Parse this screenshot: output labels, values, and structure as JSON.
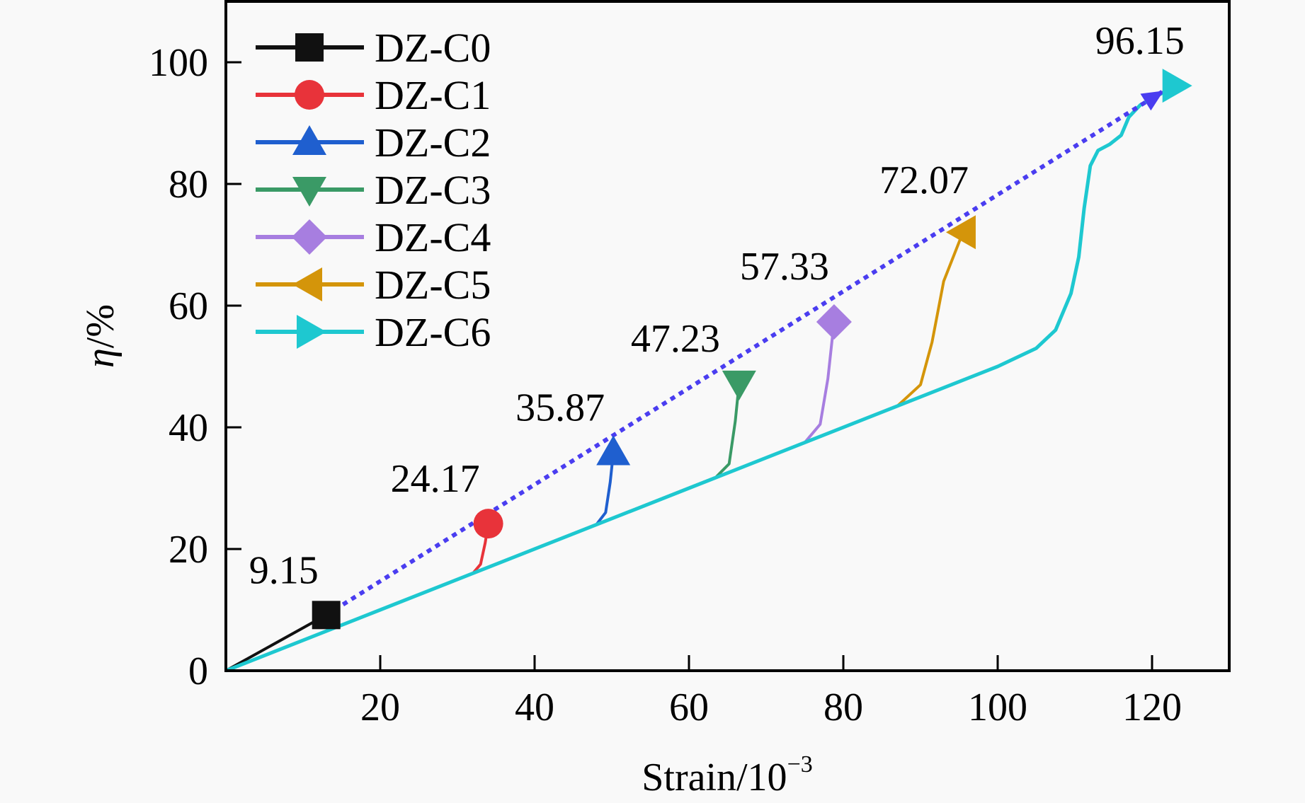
{
  "chart_data": {
    "type": "line",
    "xlabel": "Strain/10",
    "xlabel_sup": "−3",
    "ylabel_symbol": "η",
    "ylabel_unit": "/%",
    "xlim": [
      0,
      130
    ],
    "ylim": [
      0,
      110
    ],
    "xticks": [
      20,
      40,
      60,
      80,
      100,
      120
    ],
    "yticks": [
      0,
      20,
      40,
      60,
      80,
      100
    ],
    "grid": false,
    "legend_position": "top-left",
    "series": [
      {
        "name": "DZ-C0",
        "color": "#111111",
        "marker": "square",
        "x": [
          0,
          13
        ],
        "y": [
          0,
          9.15
        ],
        "end_label": "9.15"
      },
      {
        "name": "DZ-C1",
        "color": "#e8333a",
        "marker": "circle",
        "x": [
          0,
          32,
          33,
          33.6,
          34
        ],
        "y": [
          0,
          16,
          17.5,
          21,
          24.17
        ],
        "end_label": "24.17"
      },
      {
        "name": "DZ-C2",
        "color": "#1f5fcf",
        "marker": "triangle-up",
        "x": [
          0,
          48,
          49.2,
          49.8,
          50.2
        ],
        "y": [
          0,
          24,
          26,
          31,
          35.87
        ],
        "end_label": "35.87"
      },
      {
        "name": "DZ-C3",
        "color": "#3a9a66",
        "marker": "triangle-down",
        "x": [
          0,
          63.5,
          65.2,
          66,
          66.5
        ],
        "y": [
          0,
          31.8,
          34,
          41,
          47.23
        ],
        "end_label": "47.23"
      },
      {
        "name": "DZ-C4",
        "color": "#a77ee0",
        "marker": "diamond",
        "x": [
          0,
          75,
          77,
          78,
          78.8
        ],
        "y": [
          0,
          37.5,
          40.5,
          48,
          57.33
        ],
        "end_label": "57.33"
      },
      {
        "name": "DZ-C5",
        "color": "#d4950a",
        "marker": "triangle-left",
        "x": [
          0,
          87,
          90,
          91.5,
          93,
          95.5
        ],
        "y": [
          0,
          43.5,
          47,
          54,
          64,
          72.07
        ],
        "end_label": "72.07"
      },
      {
        "name": "DZ-C6",
        "color": "#1ec8d0",
        "marker": "triangle-right",
        "x": [
          0,
          20,
          60,
          100,
          105,
          107.5,
          109.5,
          110.5,
          111.2,
          112,
          113,
          114.5,
          116,
          117,
          118.5,
          120,
          123
        ],
        "y": [
          0,
          10,
          30,
          50,
          53,
          56,
          62,
          68,
          76,
          83,
          85.5,
          86.5,
          88,
          91,
          93,
          94,
          96.15
        ],
        "end_label": "96.15"
      }
    ],
    "trend_line": {
      "color": "#4a3df0",
      "x": [
        13,
        121.5
      ],
      "y": [
        9.15,
        95.3
      ]
    }
  }
}
